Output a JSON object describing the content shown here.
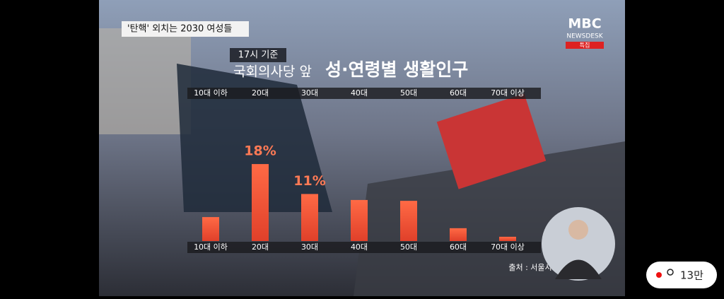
{
  "overlay": {
    "headline": "'탄핵' 외치는 2030 여성들",
    "logo": "MBC",
    "program": "NEWSDESK",
    "badge": "특집",
    "source": "출처 : 서울시",
    "viewers": "13만"
  },
  "chart_data": {
    "type": "bar",
    "subtitle": "17시 기준",
    "title_lead": "국회의사당 앞",
    "title": "성·연령별 생활인구",
    "categories": [
      "10대 이하",
      "20대",
      "30대",
      "40대",
      "50대",
      "60대",
      "70대 이상"
    ],
    "values": [
      5.6,
      18,
      11,
      9.6,
      9.4,
      3,
      1
    ],
    "value_labels": [
      null,
      "18%",
      "11%",
      null,
      null,
      null,
      null
    ],
    "color": "#f4583a"
  }
}
